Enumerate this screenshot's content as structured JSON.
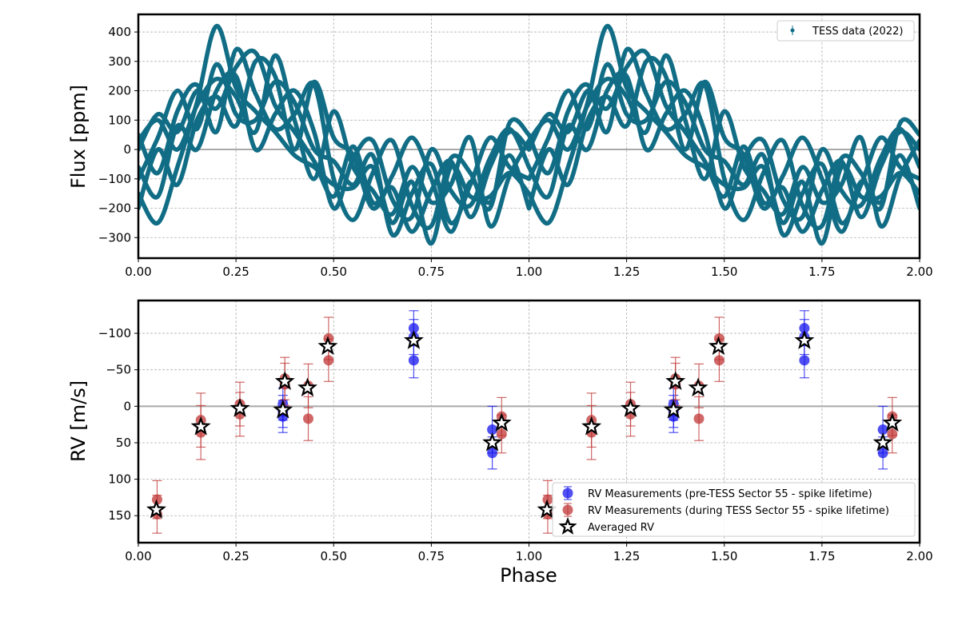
{
  "chart_data": [
    {
      "type": "line",
      "title": "",
      "xlabel": "",
      "ylabel": "Flux [ppm]",
      "xlim": [
        0,
        2
      ],
      "ylim": [
        -370,
        460
      ],
      "xticks": [
        0,
        0.25,
        0.5,
        0.75,
        1.0,
        1.25,
        1.5,
        1.75,
        2.0
      ],
      "xticklabels": [
        "0.00",
        "0.25",
        "0.50",
        "0.75",
        "1.00",
        "1.25",
        "1.50",
        "1.75",
        "2.00"
      ],
      "yticks": [
        400,
        300,
        200,
        100,
        0,
        -100,
        -200,
        -300
      ],
      "yticklabels": [
        "400",
        "300",
        "200",
        "100",
        "0",
        "−100",
        "−200",
        "−300"
      ],
      "grid": true,
      "legend": {
        "placement": "top-right",
        "entries": [
          "TESS data (2022)"
        ]
      },
      "color": "#116d85",
      "baseline": 0,
      "series": [
        {
          "name": "TESS data (2022)",
          "phase": [
            0.0,
            0.05,
            0.1,
            0.15,
            0.2,
            0.25,
            0.3,
            0.35,
            0.4,
            0.45,
            0.5,
            0.55,
            0.6,
            0.65,
            0.7,
            0.75,
            0.8,
            0.85,
            0.9,
            0.95,
            1.0
          ],
          "flux": [
            -150,
            -250,
            -60,
            160,
            420,
            210,
            130,
            60,
            -20,
            -60,
            -120,
            -130,
            -60,
            -250,
            -110,
            -320,
            -60,
            -160,
            -160,
            -80,
            -150
          ]
        },
        {
          "name": "TESS data (2022)",
          "phase": [
            0.0,
            0.05,
            0.1,
            0.15,
            0.2,
            0.25,
            0.3,
            0.35,
            0.4,
            0.45,
            0.5,
            0.55,
            0.6,
            0.65,
            0.7,
            0.75,
            0.8,
            0.85,
            0.9,
            0.95,
            1.0
          ],
          "flux": [
            0,
            120,
            60,
            200,
            140,
            280,
            330,
            150,
            60,
            -40,
            -160,
            10,
            -180,
            -130,
            -280,
            -140,
            -40,
            -230,
            -60,
            60,
            0
          ]
        },
        {
          "name": "TESS data (2022)",
          "phase": [
            0.0,
            0.05,
            0.1,
            0.15,
            0.2,
            0.25,
            0.3,
            0.35,
            0.4,
            0.45,
            0.5,
            0.55,
            0.6,
            0.65,
            0.7,
            0.75,
            0.8,
            0.85,
            0.9,
            0.95,
            1.0
          ],
          "flux": [
            -100,
            40,
            200,
            70,
            290,
            120,
            100,
            230,
            160,
            0,
            -40,
            -120,
            -20,
            -290,
            -150,
            -50,
            -250,
            -120,
            40,
            -60,
            -100
          ]
        },
        {
          "name": "TESS data (2022)",
          "phase": [
            0.0,
            0.05,
            0.1,
            0.15,
            0.2,
            0.25,
            0.3,
            0.35,
            0.4,
            0.45,
            0.5,
            0.55,
            0.6,
            0.65,
            0.7,
            0.75,
            0.8,
            0.85,
            0.9,
            0.95,
            1.0
          ],
          "flux": [
            50,
            -80,
            130,
            220,
            60,
            340,
            190,
            70,
            120,
            220,
            -100,
            -240,
            -80,
            30,
            -190,
            -260,
            -30,
            -80,
            -200,
            90,
            50
          ]
        },
        {
          "name": "TESS data (2022)",
          "phase": [
            0.0,
            0.05,
            0.1,
            0.15,
            0.2,
            0.25,
            0.3,
            0.35,
            0.4,
            0.45,
            0.5,
            0.55,
            0.6,
            0.65,
            0.7,
            0.75,
            0.8,
            0.85,
            0.9,
            0.95,
            1.0
          ],
          "flux": [
            -200,
            0,
            -120,
            100,
            180,
            80,
            300,
            250,
            0,
            230,
            40,
            -20,
            -200,
            -90,
            40,
            -100,
            -280,
            -110,
            -180,
            -20,
            -200
          ]
        },
        {
          "name": "TESS data (2022)",
          "phase": [
            0.0,
            0.05,
            0.1,
            0.15,
            0.2,
            0.25,
            0.3,
            0.35,
            0.4,
            0.45,
            0.5,
            0.55,
            0.6,
            0.65,
            0.7,
            0.75,
            0.8,
            0.85,
            0.9,
            0.95,
            1.0
          ],
          "flux": [
            30,
            100,
            0,
            150,
            240,
            180,
            60,
            320,
            100,
            -100,
            130,
            -60,
            -140,
            -220,
            -60,
            -180,
            -120,
            40,
            -260,
            -90,
            30
          ]
        },
        {
          "name": "TESS data (2022)",
          "phase": [
            0.0,
            0.05,
            0.1,
            0.15,
            0.2,
            0.25,
            0.3,
            0.35,
            0.4,
            0.45,
            0.5,
            0.55,
            0.6,
            0.65,
            0.7,
            0.75,
            0.8,
            0.85,
            0.9,
            0.95,
            1.0
          ],
          "flux": [
            -60,
            -160,
            80,
            0,
            200,
            250,
            0,
            120,
            200,
            60,
            -200,
            -30,
            30,
            -170,
            -230,
            0,
            -140,
            -190,
            -30,
            70,
            -60
          ]
        }
      ]
    },
    {
      "type": "scatter",
      "title": "",
      "xlabel": "Phase",
      "ylabel": "RV [m/s]",
      "xlim": [
        0,
        2
      ],
      "ylim": [
        187,
        -145
      ],
      "y_inverted": true,
      "xticks": [
        0,
        0.25,
        0.5,
        0.75,
        1.0,
        1.25,
        1.5,
        1.75,
        2.0
      ],
      "xticklabels": [
        "0.00",
        "0.25",
        "0.50",
        "0.75",
        "1.00",
        "1.25",
        "1.50",
        "1.75",
        "2.00"
      ],
      "yticks": [
        -100,
        -50,
        0,
        50,
        100,
        150
      ],
      "yticklabels": [
        "−100",
        "−50",
        "0",
        "50",
        "100",
        "150"
      ],
      "grid": true,
      "baseline": 0,
      "legend": {
        "placement": "lower-right",
        "entries": [
          "RV Measurements (pre-TESS Sector 55 - spike lifetime)",
          "RV Measurements (during TESS Sector 55 - spike lifetime)",
          "Averaged RV"
        ]
      },
      "series": [
        {
          "name": "RV Measurements (pre-TESS Sector 55 - spike lifetime)",
          "color": "#1515ee",
          "phase": [
            0.37,
            0.37,
            0.37,
            0.705,
            0.705,
            0.705,
            0.906,
            0.906
          ],
          "rv": [
            -3,
            7,
            14,
            -107,
            -95,
            -63,
            32,
            64
          ],
          "err": [
            22,
            22,
            22,
            24,
            24,
            24,
            32,
            22
          ]
        },
        {
          "name": "RV Measurements (during TESS Sector 55 - spike lifetime)",
          "color": "#c03535",
          "phase": [
            0.048,
            0.048,
            0.16,
            0.16,
            0.26,
            0.26,
            0.375,
            0.375,
            0.435,
            0.435,
            0.487,
            0.487,
            0.93,
            0.93
          ],
          "rv": [
            128,
            148,
            19,
            36,
            -3,
            11,
            -38,
            -30,
            -28,
            17,
            -93,
            -63,
            14,
            38
          ],
          "err": [
            26,
            26,
            37,
            37,
            30,
            30,
            29,
            29,
            30,
            30,
            29,
            29,
            26,
            26
          ]
        },
        {
          "name": "Averaged RV",
          "color": "#000000",
          "phase": [
            0.046,
            0.16,
            0.26,
            0.37,
            0.375,
            0.433,
            0.485,
            0.705,
            0.906,
            0.93
          ],
          "rv": [
            142,
            28,
            3,
            5,
            -34,
            -25,
            -82,
            -90,
            50,
            23
          ]
        }
      ]
    }
  ]
}
